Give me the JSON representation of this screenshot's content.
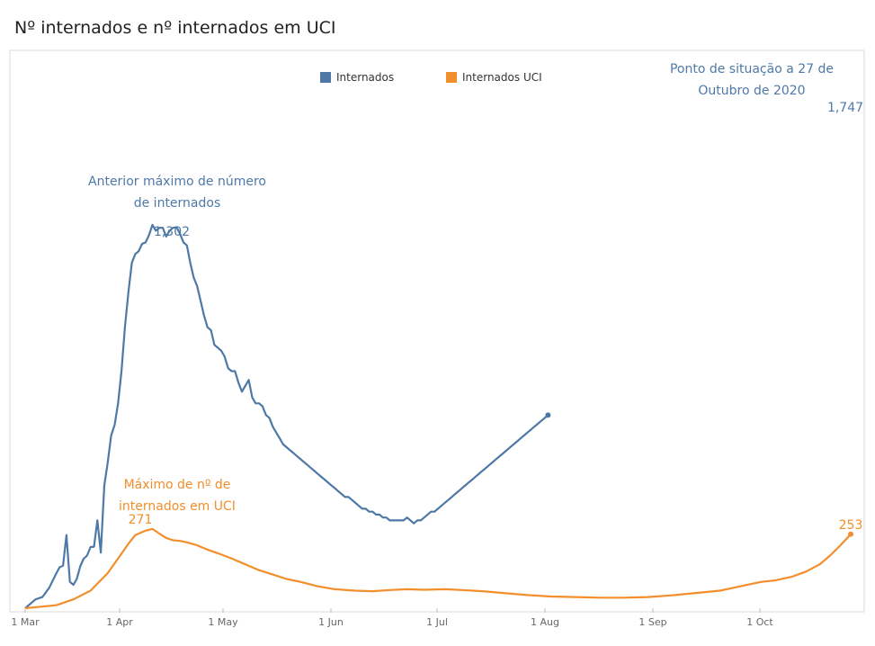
{
  "title": "Nº internados e nº internados em UCI",
  "chart_data": {
    "type": "line",
    "x_start": "2020-03-01",
    "x_end": "2020-10-27",
    "x_tick_labels": [
      "1 Mar",
      "1 Apr",
      "1 May",
      "1 Jun",
      "1 Jul",
      "1 Aug",
      "1 Sep",
      "1 Oct"
    ],
    "ylim": [
      0,
      1900
    ],
    "grid": false,
    "legend": "top-center",
    "series": [
      {
        "name": "Internados",
        "color": "#4e79a7",
        "points": [
          [
            "2020-03-01",
            0
          ],
          [
            "2020-03-04",
            30
          ],
          [
            "2020-03-06",
            38
          ],
          [
            "2020-03-08",
            70
          ],
          [
            "2020-03-10",
            118
          ],
          [
            "2020-03-11",
            140
          ],
          [
            "2020-03-12",
            145
          ],
          [
            "2020-03-13",
            250
          ],
          [
            "2020-03-14",
            90
          ],
          [
            "2020-03-15",
            80
          ],
          [
            "2020-03-16",
            100
          ],
          [
            "2020-03-17",
            143
          ],
          [
            "2020-03-18",
            169
          ],
          [
            "2020-03-19",
            180
          ],
          [
            "2020-03-20",
            209
          ],
          [
            "2020-03-21",
            210
          ],
          [
            "2020-03-22",
            300
          ],
          [
            "2020-03-23",
            190
          ],
          [
            "2020-03-24",
            420
          ],
          [
            "2020-03-25",
            498
          ],
          [
            "2020-03-26",
            590
          ],
          [
            "2020-03-27",
            627
          ],
          [
            "2020-03-28",
            700
          ],
          [
            "2020-03-29",
            810
          ],
          [
            "2020-03-30",
            960
          ],
          [
            "2020-03-31",
            1080
          ],
          [
            "2020-04-01",
            1180
          ],
          [
            "2020-04-02",
            1210
          ],
          [
            "2020-04-03",
            1220
          ],
          [
            "2020-04-04",
            1245
          ],
          [
            "2020-04-05",
            1250
          ],
          [
            "2020-04-06",
            1275
          ],
          [
            "2020-04-07",
            1310
          ],
          [
            "2020-04-08",
            1290
          ],
          [
            "2020-04-09",
            1300
          ],
          [
            "2020-04-10",
            1300
          ],
          [
            "2020-04-11",
            1270
          ],
          [
            "2020-04-12",
            1290
          ],
          [
            "2020-04-13",
            1300
          ],
          [
            "2020-04-14",
            1302
          ],
          [
            "2020-04-15",
            1280
          ],
          [
            "2020-04-16",
            1250
          ],
          [
            "2020-04-17",
            1240
          ],
          [
            "2020-04-18",
            1180
          ],
          [
            "2020-04-19",
            1130
          ],
          [
            "2020-04-20",
            1100
          ],
          [
            "2020-04-21",
            1050
          ],
          [
            "2020-04-22",
            1000
          ],
          [
            "2020-04-23",
            960
          ],
          [
            "2020-04-24",
            950
          ],
          [
            "2020-04-25",
            900
          ],
          [
            "2020-04-26",
            890
          ],
          [
            "2020-04-27",
            880
          ],
          [
            "2020-04-28",
            860
          ],
          [
            "2020-04-29",
            820
          ],
          [
            "2020-04-30",
            810
          ],
          [
            "2020-05-01",
            810
          ],
          [
            "2020-05-02",
            770
          ],
          [
            "2020-05-03",
            740
          ],
          [
            "2020-05-04",
            760
          ],
          [
            "2020-05-05",
            780
          ],
          [
            "2020-05-06",
            720
          ],
          [
            "2020-05-07",
            700
          ],
          [
            "2020-05-08",
            700
          ],
          [
            "2020-05-09",
            690
          ],
          [
            "2020-05-10",
            660
          ],
          [
            "2020-05-11",
            650
          ],
          [
            "2020-05-12",
            620
          ],
          [
            "2020-05-13",
            600
          ],
          [
            "2020-05-14",
            580
          ],
          [
            "2020-05-15",
            560
          ],
          [
            "2020-05-16",
            550
          ],
          [
            "2020-05-17",
            540
          ],
          [
            "2020-05-18",
            530
          ],
          [
            "2020-05-19",
            520
          ],
          [
            "2020-05-20",
            510
          ],
          [
            "2020-05-21",
            500
          ],
          [
            "2020-05-22",
            490
          ],
          [
            "2020-05-23",
            480
          ],
          [
            "2020-05-24",
            470
          ],
          [
            "2020-05-25",
            460
          ],
          [
            "2020-05-26",
            450
          ],
          [
            "2020-05-27",
            440
          ],
          [
            "2020-05-28",
            430
          ],
          [
            "2020-05-29",
            420
          ],
          [
            "2020-05-30",
            410
          ],
          [
            "2020-05-31",
            400
          ],
          [
            "2020-06-01",
            390
          ],
          [
            "2020-06-02",
            380
          ],
          [
            "2020-06-03",
            380
          ],
          [
            "2020-06-04",
            370
          ],
          [
            "2020-06-05",
            360
          ],
          [
            "2020-06-06",
            350
          ],
          [
            "2020-06-07",
            340
          ],
          [
            "2020-06-08",
            340
          ],
          [
            "2020-06-09",
            330
          ],
          [
            "2020-06-10",
            330
          ],
          [
            "2020-06-11",
            320
          ],
          [
            "2020-06-12",
            320
          ],
          [
            "2020-06-13",
            310
          ],
          [
            "2020-06-14",
            310
          ],
          [
            "2020-06-15",
            300
          ],
          [
            "2020-06-16",
            300
          ],
          [
            "2020-06-17",
            300
          ],
          [
            "2020-06-18",
            300
          ],
          [
            "2020-06-19",
            300
          ],
          [
            "2020-06-20",
            310
          ],
          [
            "2020-06-21",
            300
          ],
          [
            "2020-06-22",
            290
          ],
          [
            "2020-06-23",
            300
          ],
          [
            "2020-06-24",
            300
          ],
          [
            "2020-06-25",
            310
          ],
          [
            "2020-06-26",
            320
          ],
          [
            "2020-06-27",
            330
          ],
          [
            "2020-06-28",
            330
          ],
          [
            "2020-06-29",
            340
          ],
          [
            "2020-06-30",
            350
          ],
          [
            "2020-07-01",
            360
          ],
          [
            "2020-07-02",
            370
          ],
          [
            "2020-07-03",
            380
          ],
          [
            "2020-07-04",
            390
          ],
          [
            "2020-07-05",
            400
          ],
          [
            "2020-07-06",
            410
          ],
          [
            "2020-07-07",
            420
          ],
          [
            "2020-07-08",
            430
          ],
          [
            "2020-07-09",
            440
          ],
          [
            "2020-07-10",
            450
          ],
          [
            "2020-07-11",
            460
          ],
          [
            "2020-07-12",
            470
          ],
          [
            "2020-07-13",
            480
          ],
          [
            "2020-07-14",
            490
          ],
          [
            "2020-07-15",
            500
          ],
          [
            "2020-07-16",
            510
          ],
          [
            "2020-07-17",
            520
          ],
          [
            "2020-07-18",
            530
          ],
          [
            "2020-07-19",
            540
          ],
          [
            "2020-07-20",
            550
          ],
          [
            "2020-07-21",
            560
          ],
          [
            "2020-07-22",
            570
          ],
          [
            "2020-07-23",
            580
          ],
          [
            "2020-07-24",
            590
          ],
          [
            "2020-07-25",
            600
          ],
          [
            "2020-07-26",
            610
          ],
          [
            "2020-07-27",
            620
          ],
          [
            "2020-07-28",
            630
          ],
          [
            "2020-07-29",
            640
          ],
          [
            "2020-07-30",
            650
          ],
          [
            "2020-07-31",
            660
          ]
        ]
      },
      {
        "name": "Internados UCI",
        "color": "#f28e2b",
        "points": [
          [
            "2020-03-01",
            0
          ],
          [
            "2020-03-10",
            10
          ],
          [
            "2020-03-15",
            30
          ],
          [
            "2020-03-20",
            60
          ],
          [
            "2020-03-25",
            120
          ],
          [
            "2020-03-28",
            170
          ],
          [
            "2020-03-31",
            220
          ],
          [
            "2020-04-02",
            250
          ],
          [
            "2020-04-05",
            265
          ],
          [
            "2020-04-07",
            271
          ],
          [
            "2020-04-09",
            255
          ],
          [
            "2020-04-11",
            240
          ],
          [
            "2020-04-13",
            232
          ],
          [
            "2020-04-15",
            230
          ],
          [
            "2020-04-17",
            225
          ],
          [
            "2020-04-20",
            215
          ],
          [
            "2020-04-23",
            200
          ],
          [
            "2020-04-26",
            188
          ],
          [
            "2020-04-30",
            170
          ],
          [
            "2020-05-04",
            150
          ],
          [
            "2020-05-08",
            130
          ],
          [
            "2020-05-12",
            115
          ],
          [
            "2020-05-16",
            100
          ],
          [
            "2020-05-20",
            90
          ],
          [
            "2020-05-25",
            75
          ],
          [
            "2020-05-30",
            65
          ],
          [
            "2020-06-05",
            60
          ],
          [
            "2020-06-10",
            58
          ],
          [
            "2020-06-15",
            62
          ],
          [
            "2020-06-20",
            65
          ],
          [
            "2020-06-25",
            63
          ],
          [
            "2020-07-01",
            65
          ],
          [
            "2020-07-06",
            62
          ],
          [
            "2020-07-12",
            58
          ],
          [
            "2020-07-18",
            52
          ],
          [
            "2020-07-25",
            45
          ],
          [
            "2020-08-01",
            40
          ],
          [
            "2020-08-08",
            38
          ],
          [
            "2020-08-15",
            36
          ],
          [
            "2020-08-22",
            36
          ],
          [
            "2020-08-29",
            38
          ],
          [
            "2020-09-05",
            44
          ],
          [
            "2020-09-12",
            52
          ],
          [
            "2020-09-19",
            60
          ],
          [
            "2020-09-25",
            75
          ],
          [
            "2020-10-01",
            90
          ],
          [
            "2020-10-05",
            95
          ],
          [
            "2020-10-10",
            108
          ],
          [
            "2020-10-14",
            125
          ],
          [
            "2020-10-18",
            150
          ],
          [
            "2020-10-21",
            180
          ],
          [
            "2020-10-24",
            215
          ],
          [
            "2020-10-27",
            253
          ]
        ]
      }
    ],
    "annotations": [
      {
        "id": "prev_max",
        "text_lines": [
          "Anterior máximo de número",
          "de internados"
        ],
        "color": "#4e79a7",
        "peak_label": "1,302"
      },
      {
        "id": "icu_max",
        "text_lines": [
          "Máximo de nº de",
          "internados em UCI"
        ],
        "color": "#f28e2b",
        "peak_label": "271"
      },
      {
        "id": "status",
        "text_lines": [
          "Ponto de situação a 27 de",
          "Outubro de 2020"
        ],
        "color": "#4e79a7",
        "peak_label": "1,747"
      },
      {
        "id": "icu_last",
        "text_lines": [],
        "color": "#f28e2b",
        "peak_label": "253"
      }
    ]
  }
}
